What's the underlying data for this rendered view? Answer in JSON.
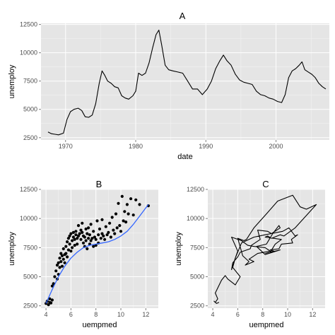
{
  "chart_data": [
    {
      "type": "line",
      "title": "A",
      "xlabel": "date",
      "ylabel": "unemploy",
      "xlim": [
        1966.5,
        2007.6
      ],
      "ylim": [
        2300,
        12600
      ],
      "x_ticks": [
        1970,
        1980,
        1990,
        2000
      ],
      "y_ticks": [
        2500,
        5000,
        7500,
        10000,
        12500
      ],
      "grid": true,
      "series": [
        {
          "x": [
            1967.5,
            1968.0,
            1968.5,
            1969.0,
            1969.7,
            1970.2,
            1970.7,
            1971.2,
            1971.8,
            1972.3,
            1972.8,
            1973.3,
            1973.8,
            1974.3,
            1974.8,
            1975.2,
            1975.6,
            1976.0,
            1976.5,
            1977.0,
            1977.5,
            1978.0,
            1978.5,
            1979.0,
            1979.6,
            1980.0,
            1980.4,
            1980.9,
            1981.4,
            1981.9,
            1982.4,
            1982.9,
            1983.3,
            1983.7,
            1984.2,
            1984.7,
            1985.3,
            1986.0,
            1986.7,
            1987.4,
            1988.1,
            1988.8,
            1989.5,
            1990.2,
            1990.8,
            1991.4,
            1992.0,
            1992.5,
            1993.0,
            1993.6,
            1994.2,
            1994.8,
            1995.4,
            1996.0,
            1996.6,
            1997.2,
            1997.8,
            1998.4,
            1999.0,
            1999.6,
            2000.2,
            2000.8,
            2001.3,
            2001.8,
            2002.3,
            2002.8,
            2003.3,
            2003.7,
            2004.1,
            2004.6,
            2005.1,
            2005.6,
            2006.1,
            2006.6,
            2007.1
          ],
          "values": [
            3000,
            2850,
            2800,
            2750,
            2900,
            4100,
            4800,
            5000,
            5100,
            4900,
            4350,
            4300,
            4500,
            5500,
            7300,
            8400,
            8000,
            7500,
            7300,
            7000,
            6900,
            6200,
            6000,
            5900,
            6200,
            6600,
            8200,
            8000,
            8200,
            9100,
            10400,
            11600,
            12000,
            10700,
            8900,
            8500,
            8400,
            8300,
            8200,
            7500,
            6800,
            6800,
            6300,
            6800,
            7500,
            8600,
            9300,
            9800,
            9300,
            8900,
            8100,
            7600,
            7400,
            7300,
            7200,
            6600,
            6300,
            6200,
            6000,
            5900,
            5700,
            5600,
            6300,
            7800,
            8400,
            8600,
            8900,
            9200,
            8500,
            8300,
            8100,
            7800,
            7300,
            7000,
            6800
          ]
        }
      ]
    },
    {
      "type": "scatter",
      "title": "B",
      "xlabel": "uempmed",
      "ylabel": "unemploy",
      "xlim": [
        3.6,
        13.0
      ],
      "ylim": [
        2300,
        12500
      ],
      "x_ticks": [
        4,
        6,
        8,
        10,
        12
      ],
      "y_ticks": [
        2500,
        5000,
        7500,
        10000,
        12500
      ],
      "grid": true,
      "fit_line": {
        "color": "#3366ff",
        "x": [
          4.0,
          4.5,
          5.0,
          5.5,
          6.0,
          6.5,
          7.0,
          7.5,
          8.0,
          8.5,
          9.0,
          9.5,
          10.0,
          10.5,
          11.0,
          11.5,
          12.2
        ],
        "values": [
          2700,
          3900,
          5000,
          5900,
          6600,
          7100,
          7500,
          7700,
          7800,
          7900,
          8000,
          8200,
          8500,
          8900,
          9500,
          10200,
          11200
        ]
      },
      "points": {
        "x": [
          4.0,
          4.1,
          4.2,
          4.3,
          4.3,
          4.4,
          4.5,
          4.5,
          4.6,
          4.7,
          4.8,
          4.9,
          4.9,
          5.0,
          5.0,
          5.1,
          5.1,
          5.2,
          5.2,
          5.3,
          5.3,
          5.4,
          5.4,
          5.5,
          5.5,
          5.6,
          5.6,
          5.7,
          5.7,
          5.8,
          5.8,
          5.9,
          5.9,
          6.0,
          6.0,
          6.1,
          6.1,
          6.2,
          6.2,
          6.3,
          6.3,
          6.4,
          6.4,
          6.5,
          6.5,
          6.6,
          6.6,
          6.7,
          6.8,
          6.8,
          6.9,
          6.9,
          7.0,
          7.0,
          7.1,
          7.1,
          7.2,
          7.2,
          7.3,
          7.3,
          7.4,
          7.4,
          7.5,
          7.5,
          7.6,
          7.6,
          7.7,
          7.8,
          7.8,
          7.9,
          8.0,
          8.0,
          8.1,
          8.2,
          8.2,
          8.3,
          8.4,
          8.5,
          8.5,
          8.6,
          8.7,
          8.8,
          8.9,
          9.0,
          9.1,
          9.2,
          9.3,
          9.4,
          9.5,
          9.6,
          9.7,
          9.8,
          9.9,
          10.0,
          10.1,
          10.2,
          10.3,
          10.4,
          10.5,
          10.6,
          10.8,
          11.0,
          11.2,
          11.5,
          12.2
        ],
        "values": [
          2700,
          2900,
          2600,
          3100,
          2800,
          2750,
          3000,
          4200,
          4400,
          5000,
          5500,
          6000,
          4800,
          6200,
          5200,
          6600,
          5800,
          7000,
          6300,
          6800,
          5900,
          7400,
          6500,
          6900,
          6200,
          7600,
          7000,
          8000,
          6700,
          8300,
          7300,
          8500,
          7800,
          8700,
          7200,
          8100,
          7500,
          8400,
          8800,
          7700,
          8200,
          8900,
          8600,
          7800,
          8300,
          8500,
          9400,
          8700,
          9000,
          8200,
          8800,
          9600,
          7900,
          8500,
          8400,
          7600,
          9100,
          8100,
          8700,
          7400,
          8300,
          9200,
          7800,
          8600,
          9500,
          8100,
          8300,
          7600,
          8900,
          8400,
          7700,
          8200,
          9800,
          8600,
          7900,
          9100,
          8300,
          8700,
          9900,
          8500,
          8200,
          9300,
          8600,
          8800,
          9600,
          8400,
          10100,
          9000,
          8700,
          10400,
          9200,
          11300,
          9400,
          8900,
          11900,
          9800,
          10600,
          9700,
          11200,
          10400,
          11700,
          10300,
          11600,
          11200,
          11100
        ]
      }
    },
    {
      "type": "line",
      "title": "C",
      "xlabel": "uempmed",
      "ylabel": "unemploy",
      "xlim": [
        3.6,
        13.0
      ],
      "ylim": [
        2300,
        12500
      ],
      "x_ticks": [
        4,
        6,
        8,
        10,
        12
      ],
      "y_ticks": [
        2500,
        5000,
        7500,
        10000,
        12500
      ],
      "grid": true,
      "series": [
        {
          "x": [
            4.5,
            4.3,
            4.1,
            4.2,
            4.4,
            4.2,
            4.7,
            5.0,
            5.2,
            5.8,
            6.2,
            5.6,
            5.8,
            6.0,
            5.5,
            6.3,
            6.8,
            7.3,
            8.2,
            8.6,
            7.6,
            6.9,
            7.3,
            6.6,
            6.9,
            6.4,
            6.0,
            6.5,
            6.7,
            7.3,
            8.3,
            9.2,
            10.4,
            11.0,
            11.5,
            12.3,
            10.6,
            9.7,
            9.4,
            8.7,
            8.4,
            8.2,
            9.5,
            9.0,
            8.6,
            9.4,
            8.2,
            7.5,
            8.3,
            8.8,
            9.3,
            9.4,
            8.7,
            8.4,
            7.6,
            7.8,
            7.1,
            7.0,
            6.2,
            6.0,
            5.6,
            5.5,
            5.8,
            6.3,
            7.3,
            8.2,
            9.6,
            10.1,
            10.6,
            10.8,
            10.3,
            10.4,
            9.5,
            9.3,
            8.6,
            8.9,
            8.2
          ],
          "values": [
            2800,
            2700,
            2900,
            2800,
            3100,
            3600,
            4700,
            5100,
            4800,
            4300,
            5000,
            5800,
            6600,
            7200,
            8400,
            8100,
            7700,
            7600,
            7500,
            7200,
            7000,
            6500,
            6300,
            6000,
            6300,
            6800,
            8300,
            8100,
            8200,
            9200,
            10400,
            11500,
            12000,
            11000,
            10800,
            11200,
            9200,
            8500,
            8600,
            8300,
            8500,
            8400,
            8200,
            7800,
            7100,
            7300,
            6900,
            7600,
            7800,
            8700,
            9400,
            9200,
            8700,
            8900,
            9000,
            8200,
            7700,
            7400,
            7100,
            6700,
            6200,
            5600,
            6600,
            7900,
            8400,
            8600,
            8900,
            9200,
            8500,
            8600,
            8200,
            7900,
            7800,
            7400,
            7300,
            7200,
            7000
          ]
        }
      ]
    }
  ]
}
